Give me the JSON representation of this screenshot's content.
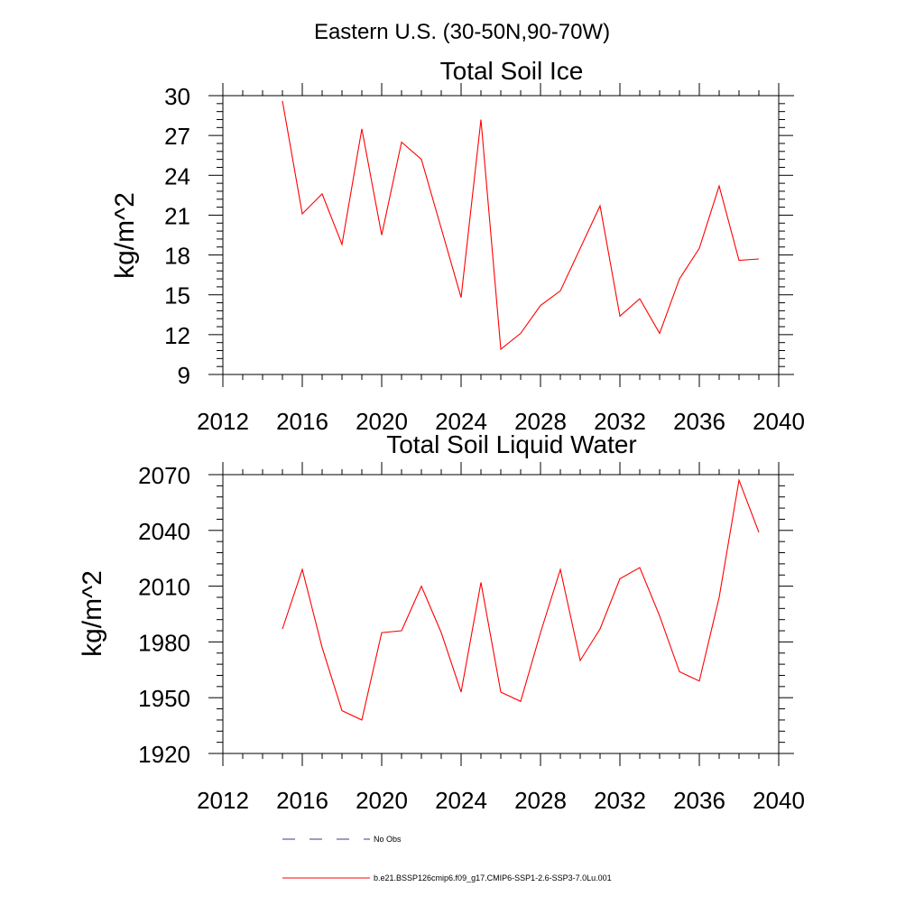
{
  "figure": {
    "title": "Eastern U.S. (30-50N,90-70W)"
  },
  "legend": {
    "items": [
      {
        "label": "No Obs",
        "style": "dashed",
        "color": "#3b3b8a"
      },
      {
        "label": "b.e21.BSSP126cmip6.f09_g17.CMIP6-SSP1-2.6-SSP3-7.0Lu.001",
        "style": "solid",
        "color": "#ff0000"
      }
    ]
  },
  "chart_data": [
    {
      "type": "line",
      "title": "Total Soil Ice",
      "xlabel": "",
      "ylabel": "kg/m^2",
      "xlim": [
        2012,
        2040
      ],
      "ylim": [
        9,
        30
      ],
      "x_ticks": [
        2012,
        2016,
        2020,
        2024,
        2028,
        2032,
        2036,
        2040
      ],
      "y_ticks": [
        9,
        12,
        15,
        18,
        21,
        24,
        27,
        30
      ],
      "grid": false,
      "x": [
        2015,
        2016,
        2017,
        2018,
        2019,
        2020,
        2021,
        2022,
        2023,
        2024,
        2025,
        2026,
        2027,
        2028,
        2029,
        2030,
        2031,
        2032,
        2033,
        2034,
        2035,
        2036,
        2037,
        2038,
        2039
      ],
      "series": [
        {
          "color": "#ff0000",
          "values": [
            29.6,
            21.1,
            22.6,
            18.8,
            27.5,
            19.5,
            26.5,
            25.2,
            20.0,
            14.8,
            28.2,
            10.9,
            12.1,
            14.2,
            15.3,
            18.5,
            21.7,
            13.4,
            14.7,
            12.1,
            16.2,
            18.5,
            23.2,
            17.6,
            17.7
          ]
        }
      ]
    },
    {
      "type": "line",
      "title": "Total Soil Liquid Water",
      "xlabel": "",
      "ylabel": "kg/m^2",
      "xlim": [
        2012,
        2040
      ],
      "ylim": [
        1920,
        2070
      ],
      "x_ticks": [
        2012,
        2016,
        2020,
        2024,
        2028,
        2032,
        2036,
        2040
      ],
      "y_ticks": [
        1920,
        1950,
        1980,
        2010,
        2040,
        2070
      ],
      "grid": false,
      "x": [
        2015,
        2016,
        2017,
        2018,
        2019,
        2020,
        2021,
        2022,
        2023,
        2024,
        2025,
        2026,
        2027,
        2028,
        2029,
        2030,
        2031,
        2032,
        2033,
        2034,
        2035,
        2036,
        2037,
        2038,
        2039
      ],
      "series": [
        {
          "color": "#ff0000",
          "values": [
            1987,
            2019,
            1977,
            1943,
            1938,
            1985,
            1986,
            2010,
            1985,
            1953,
            2012,
            1953,
            1948,
            1985,
            2019,
            1970,
            1987,
            2014,
            2020,
            1994,
            1964,
            1959,
            2004,
            2067,
            2039
          ]
        }
      ]
    }
  ]
}
